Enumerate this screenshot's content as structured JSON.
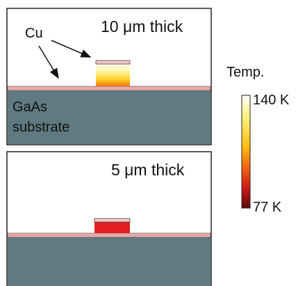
{
  "panels": [
    {
      "label": "10 μm thick",
      "callout": "Cu",
      "substrate_label": [
        "GaAs",
        "substrate"
      ]
    },
    {
      "label": "5 μm thick"
    }
  ],
  "colorbar": {
    "title": "Temp.",
    "max_label": "140 K",
    "min_label": "77 K"
  }
}
